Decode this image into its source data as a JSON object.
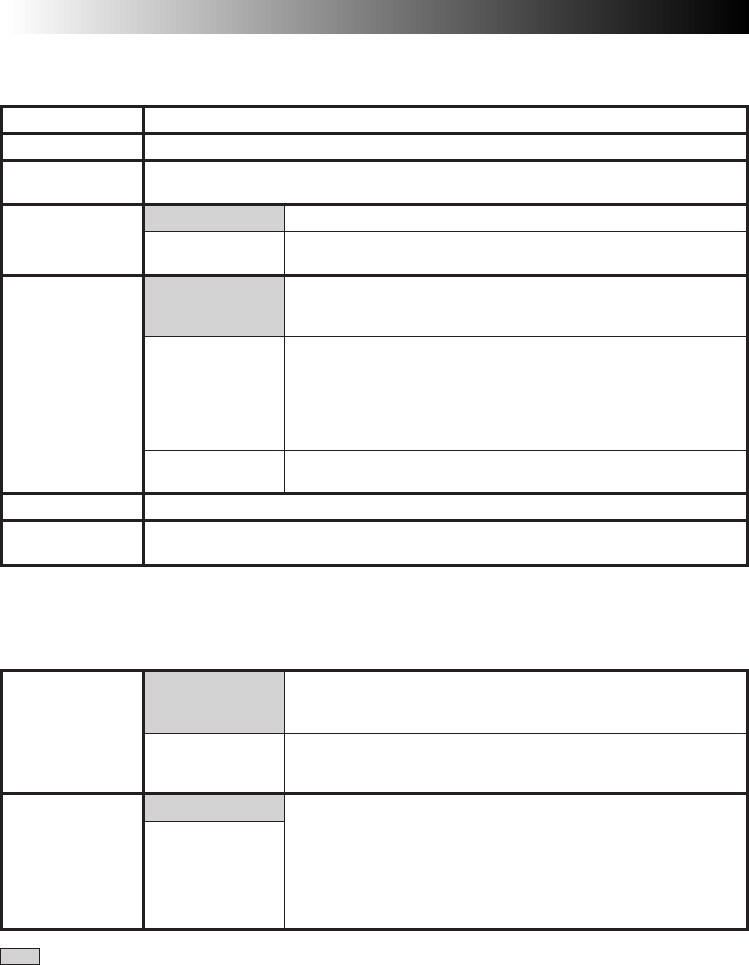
{
  "colors": {
    "rule": "#231f20",
    "shade": "#d3d3d3",
    "header_gradient_start": "#ffffff",
    "header_gradient_end": "#000000"
  }
}
